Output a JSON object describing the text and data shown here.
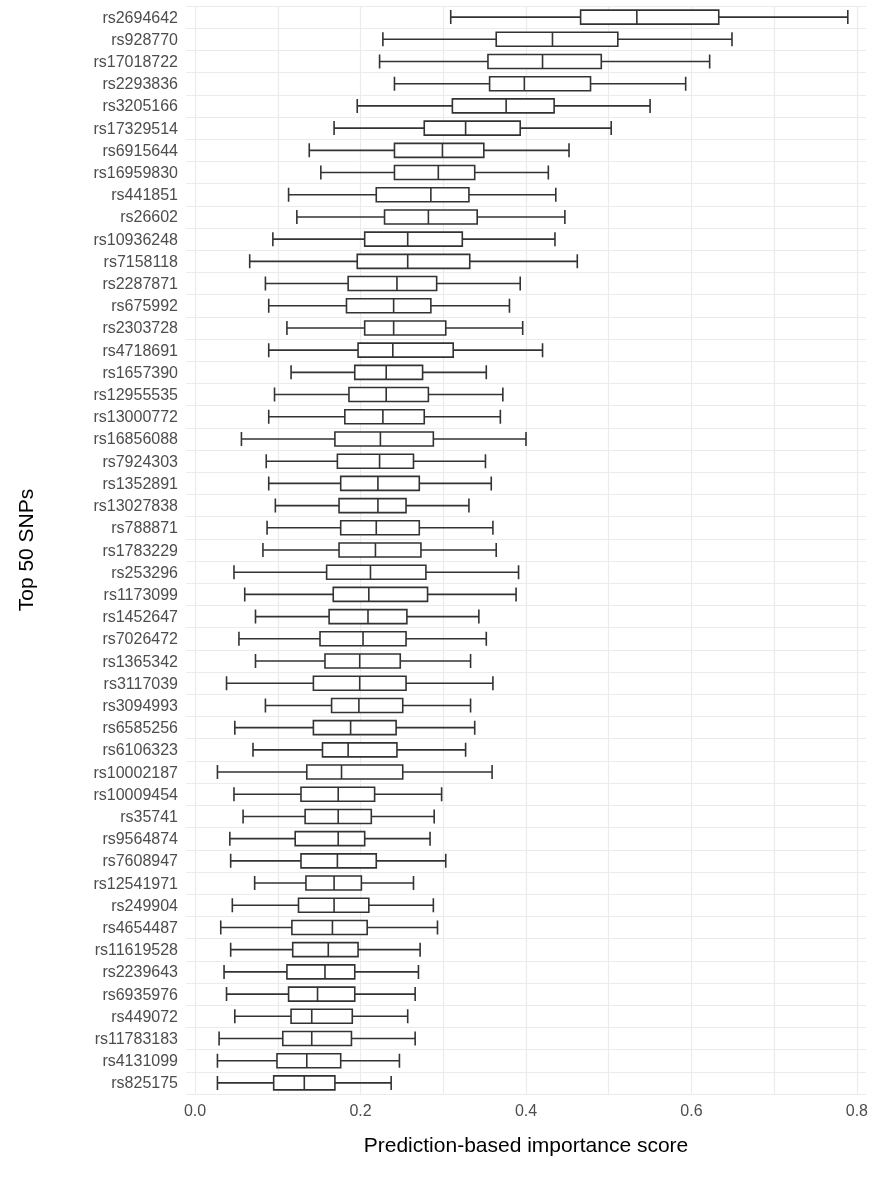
{
  "chart_data": {
    "type": "box",
    "orientation": "horizontal",
    "xlabel": "Prediction-based importance score",
    "ylabel": "Top 50 SNPs",
    "grid": true,
    "categories": [
      "rs2694642",
      "rs928770",
      "rs17018722",
      "rs2293836",
      "rs3205166",
      "rs17329514",
      "rs6915644",
      "rs16959830",
      "rs441851",
      "rs26602",
      "rs10936248",
      "rs7158118",
      "rs2287871",
      "rs675992",
      "rs2303728",
      "rs4718691",
      "rs1657390",
      "rs12955535",
      "rs13000772",
      "rs16856088",
      "rs7924303",
      "rs1352891",
      "rs13027838",
      "rs788871",
      "rs1783229",
      "rs253296",
      "rs1173099",
      "rs1452647",
      "rs7026472",
      "rs1365342",
      "rs3117039",
      "rs3094993",
      "rs6585256",
      "rs6106323",
      "rs10002187",
      "rs10009454",
      "rs35741",
      "rs9564874",
      "rs7608947",
      "rs12541971",
      "rs249904",
      "rs4654487",
      "rs11619528",
      "rs2239643",
      "rs6935976",
      "rs449072",
      "rs11783183",
      "rs4131099",
      "rs825175"
    ],
    "xlim": [
      -0.011,
      0.811
    ],
    "xticks": [
      {
        "value": 0,
        "label": "0.0"
      },
      {
        "value": 0.1,
        "label": null
      },
      0.2,
      {
        "value": 0.3,
        "label": null
      },
      0.4,
      {
        "value": 0.5,
        "label": null
      },
      0.6,
      {
        "value": 0.7,
        "label": null
      },
      0.8
    ],
    "series": [
      {
        "color": "#333333",
        "boxes": [
          {
            "low": 0.309,
            "q1": 0.466,
            "median": 0.534,
            "q3": 0.633,
            "high": 0.789
          },
          {
            "low": 0.227,
            "q1": 0.364,
            "median": 0.432,
            "q3": 0.511,
            "high": 0.649
          },
          {
            "low": 0.223,
            "q1": 0.354,
            "median": 0.42,
            "q3": 0.491,
            "high": 0.622
          },
          {
            "low": 0.241,
            "q1": 0.356,
            "median": 0.398,
            "q3": 0.478,
            "high": 0.593
          },
          {
            "low": 0.196,
            "q1": 0.311,
            "median": 0.376,
            "q3": 0.434,
            "high": 0.55
          },
          {
            "low": 0.168,
            "q1": 0.277,
            "median": 0.327,
            "q3": 0.393,
            "high": 0.503
          },
          {
            "low": 0.138,
            "q1": 0.241,
            "median": 0.299,
            "q3": 0.349,
            "high": 0.452
          },
          {
            "low": 0.152,
            "q1": 0.241,
            "median": 0.294,
            "q3": 0.338,
            "high": 0.427
          },
          {
            "low": 0.113,
            "q1": 0.219,
            "median": 0.285,
            "q3": 0.331,
            "high": 0.436
          },
          {
            "low": 0.123,
            "q1": 0.229,
            "median": 0.282,
            "q3": 0.341,
            "high": 0.447
          },
          {
            "low": 0.094,
            "q1": 0.205,
            "median": 0.257,
            "q3": 0.323,
            "high": 0.435
          },
          {
            "low": 0.066,
            "q1": 0.196,
            "median": 0.257,
            "q3": 0.332,
            "high": 0.462
          },
          {
            "low": 0.085,
            "q1": 0.185,
            "median": 0.244,
            "q3": 0.292,
            "high": 0.393
          },
          {
            "low": 0.089,
            "q1": 0.183,
            "median": 0.24,
            "q3": 0.285,
            "high": 0.38
          },
          {
            "low": 0.111,
            "q1": 0.205,
            "median": 0.24,
            "q3": 0.303,
            "high": 0.396
          },
          {
            "low": 0.089,
            "q1": 0.197,
            "median": 0.239,
            "q3": 0.312,
            "high": 0.42
          },
          {
            "low": 0.116,
            "q1": 0.193,
            "median": 0.231,
            "q3": 0.275,
            "high": 0.352
          },
          {
            "low": 0.096,
            "q1": 0.186,
            "median": 0.231,
            "q3": 0.282,
            "high": 0.372
          },
          {
            "low": 0.089,
            "q1": 0.181,
            "median": 0.227,
            "q3": 0.277,
            "high": 0.369
          },
          {
            "low": 0.056,
            "q1": 0.169,
            "median": 0.224,
            "q3": 0.288,
            "high": 0.4
          },
          {
            "low": 0.086,
            "q1": 0.172,
            "median": 0.223,
            "q3": 0.264,
            "high": 0.351
          },
          {
            "low": 0.089,
            "q1": 0.176,
            "median": 0.221,
            "q3": 0.271,
            "high": 0.358
          },
          {
            "low": 0.097,
            "q1": 0.174,
            "median": 0.221,
            "q3": 0.255,
            "high": 0.331
          },
          {
            "low": 0.087,
            "q1": 0.176,
            "median": 0.219,
            "q3": 0.271,
            "high": 0.36
          },
          {
            "low": 0.082,
            "q1": 0.174,
            "median": 0.218,
            "q3": 0.273,
            "high": 0.364
          },
          {
            "low": 0.047,
            "q1": 0.159,
            "median": 0.212,
            "q3": 0.279,
            "high": 0.391
          },
          {
            "low": 0.06,
            "q1": 0.167,
            "median": 0.21,
            "q3": 0.281,
            "high": 0.388
          },
          {
            "low": 0.073,
            "q1": 0.162,
            "median": 0.209,
            "q3": 0.256,
            "high": 0.343
          },
          {
            "low": 0.053,
            "q1": 0.151,
            "median": 0.203,
            "q3": 0.255,
            "high": 0.352
          },
          {
            "low": 0.073,
            "q1": 0.157,
            "median": 0.199,
            "q3": 0.248,
            "high": 0.333
          },
          {
            "low": 0.038,
            "q1": 0.143,
            "median": 0.199,
            "q3": 0.255,
            "high": 0.36
          },
          {
            "low": 0.085,
            "q1": 0.165,
            "median": 0.198,
            "q3": 0.251,
            "high": 0.333
          },
          {
            "low": 0.048,
            "q1": 0.143,
            "median": 0.188,
            "q3": 0.243,
            "high": 0.338
          },
          {
            "low": 0.07,
            "q1": 0.154,
            "median": 0.185,
            "q3": 0.244,
            "high": 0.327
          },
          {
            "low": 0.027,
            "q1": 0.135,
            "median": 0.177,
            "q3": 0.251,
            "high": 0.359
          },
          {
            "low": 0.047,
            "q1": 0.128,
            "median": 0.173,
            "q3": 0.217,
            "high": 0.298
          },
          {
            "low": 0.058,
            "q1": 0.133,
            "median": 0.173,
            "q3": 0.213,
            "high": 0.289
          },
          {
            "low": 0.042,
            "q1": 0.121,
            "median": 0.173,
            "q3": 0.205,
            "high": 0.284
          },
          {
            "low": 0.043,
            "q1": 0.128,
            "median": 0.172,
            "q3": 0.219,
            "high": 0.303
          },
          {
            "low": 0.072,
            "q1": 0.134,
            "median": 0.168,
            "q3": 0.201,
            "high": 0.264
          },
          {
            "low": 0.045,
            "q1": 0.125,
            "median": 0.168,
            "q3": 0.21,
            "high": 0.288
          },
          {
            "low": 0.031,
            "q1": 0.117,
            "median": 0.166,
            "q3": 0.208,
            "high": 0.293
          },
          {
            "low": 0.043,
            "q1": 0.118,
            "median": 0.161,
            "q3": 0.197,
            "high": 0.272
          },
          {
            "low": 0.035,
            "q1": 0.111,
            "median": 0.157,
            "q3": 0.193,
            "high": 0.27
          },
          {
            "low": 0.038,
            "q1": 0.113,
            "median": 0.148,
            "q3": 0.193,
            "high": 0.266
          },
          {
            "low": 0.048,
            "q1": 0.116,
            "median": 0.141,
            "q3": 0.19,
            "high": 0.257
          },
          {
            "low": 0.029,
            "q1": 0.106,
            "median": 0.141,
            "q3": 0.189,
            "high": 0.266
          },
          {
            "low": 0.027,
            "q1": 0.099,
            "median": 0.135,
            "q3": 0.176,
            "high": 0.247
          },
          {
            "low": 0.027,
            "q1": 0.095,
            "median": 0.132,
            "q3": 0.169,
            "high": 0.237
          }
        ]
      }
    ]
  }
}
